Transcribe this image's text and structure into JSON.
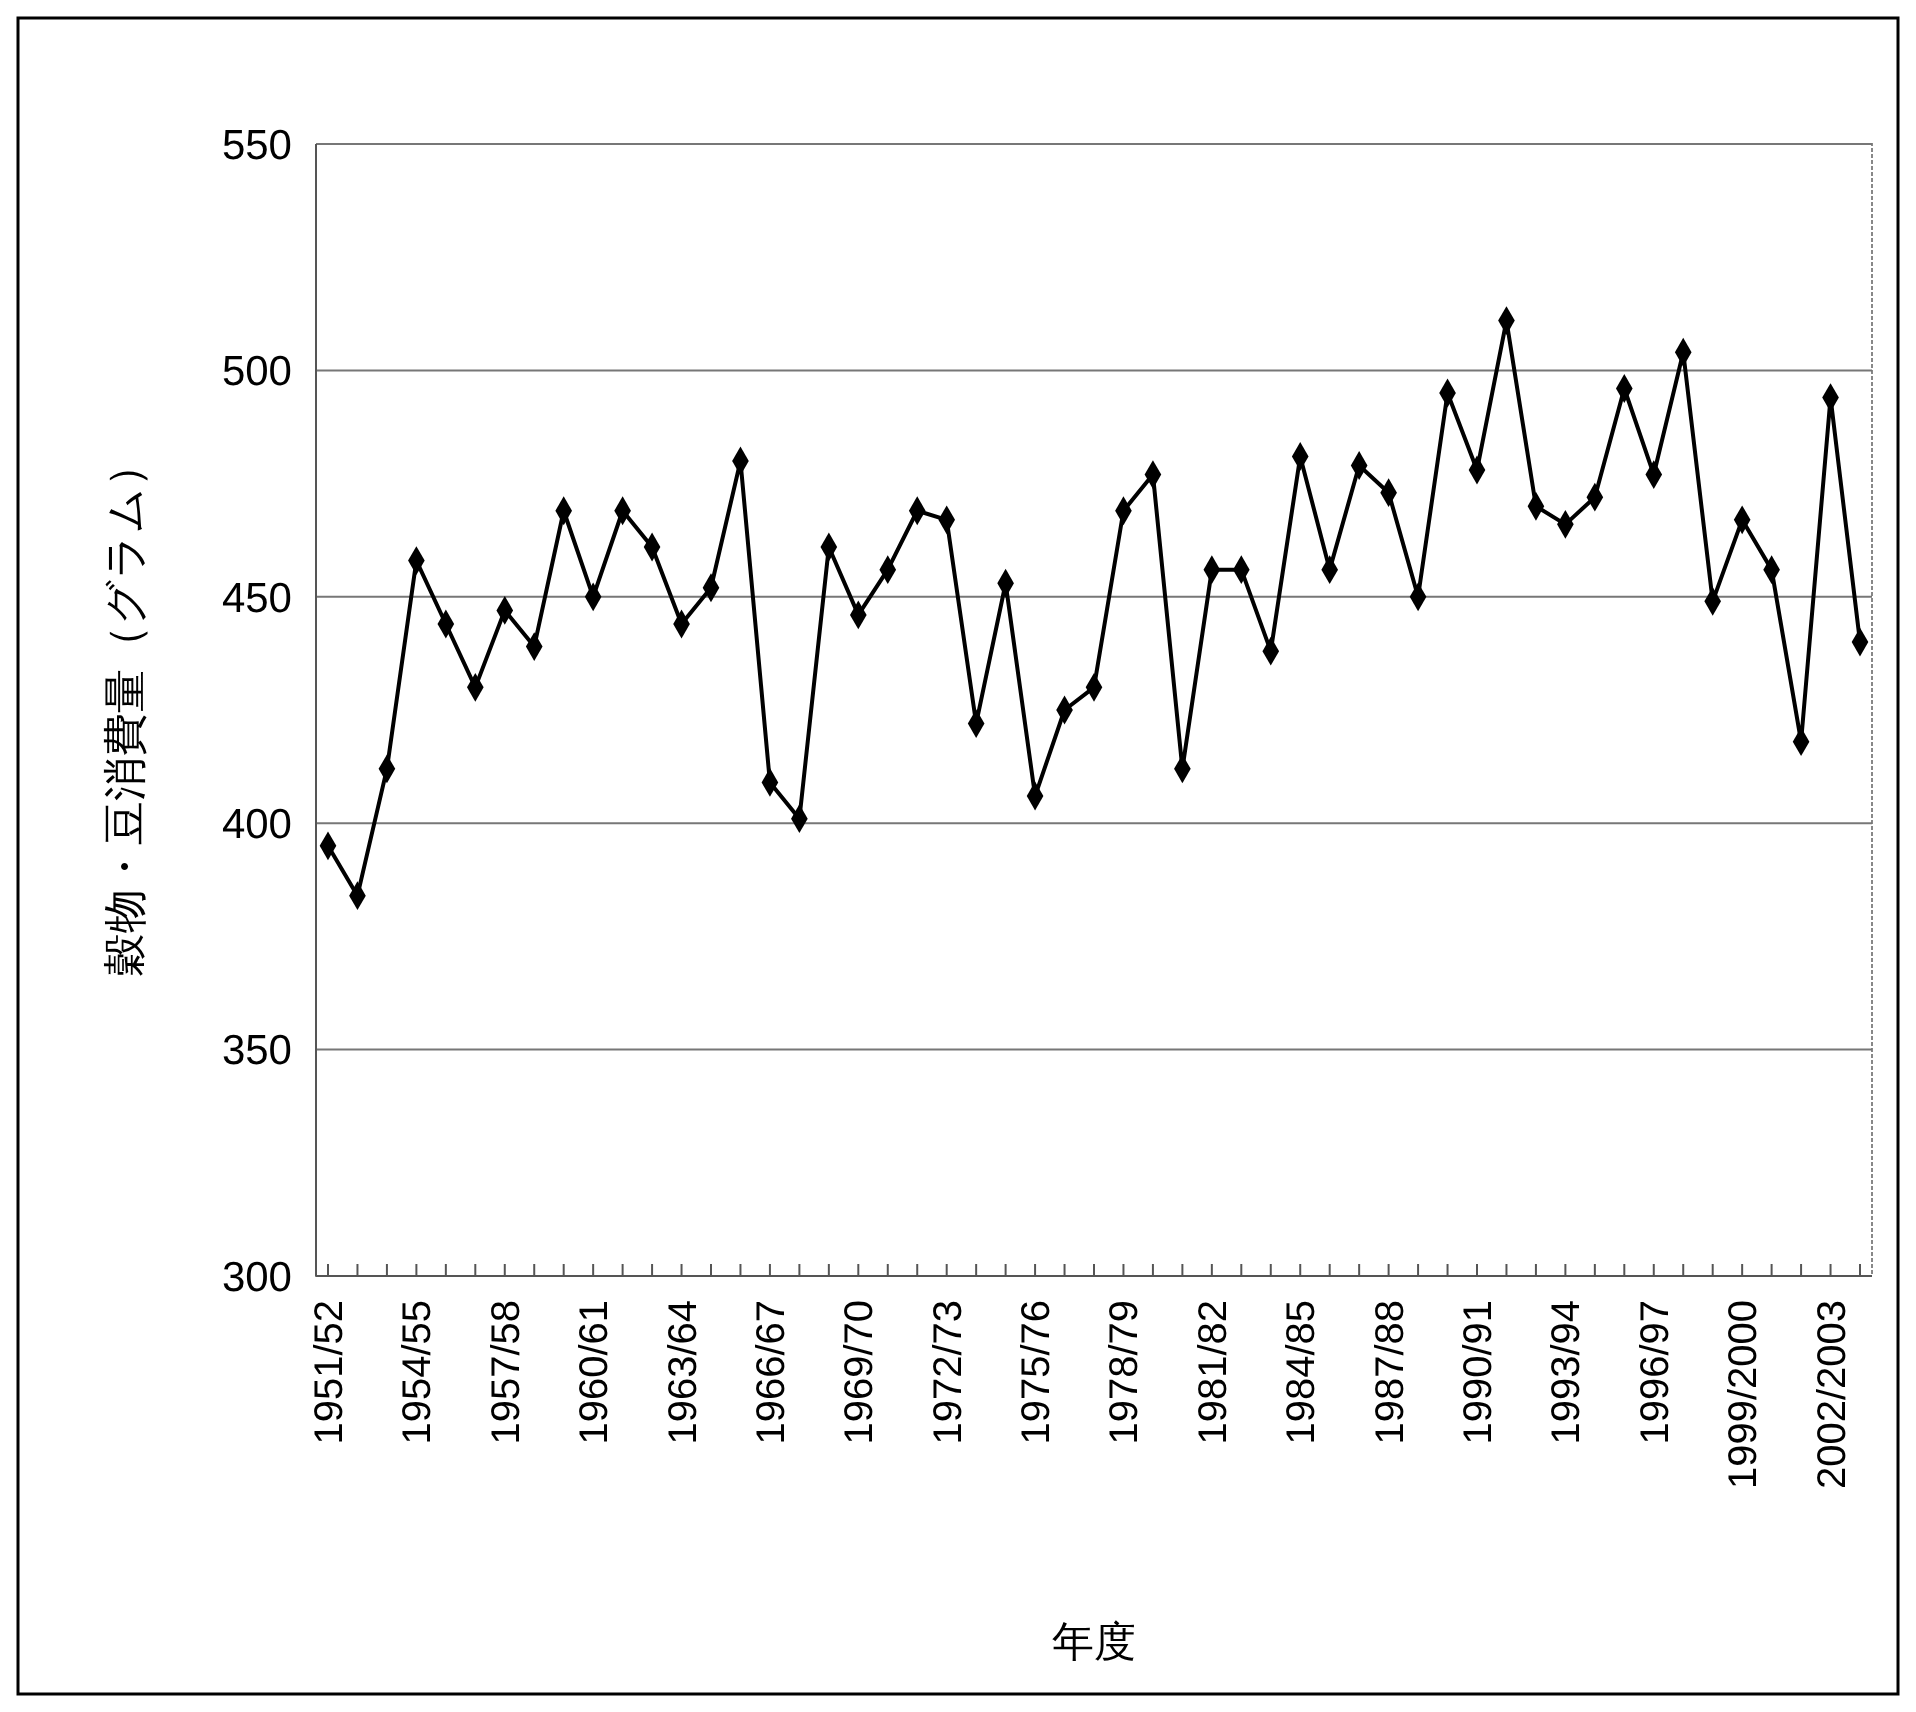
{
  "chart_data": {
    "type": "line",
    "xlabel": "年度",
    "ylabel": "穀物・豆消費量（グラム）",
    "categories": [
      "1951/52",
      null,
      null,
      "1954/55",
      null,
      null,
      "1957/58",
      null,
      null,
      "1960/61",
      null,
      null,
      "1963/64",
      null,
      null,
      "1966/67",
      null,
      null,
      "1969/70",
      null,
      null,
      "1972/73",
      null,
      null,
      "1975/76",
      null,
      null,
      "1978/79",
      null,
      null,
      "1981/82",
      null,
      null,
      "1984/85",
      null,
      null,
      "1987/88",
      null,
      null,
      "1990/91",
      null,
      null,
      "1993/94",
      null,
      null,
      "1996/97",
      null,
      null,
      "1999/2000",
      null,
      null,
      "2002/2003",
      null
    ],
    "series": [
      {
        "color": "#000000",
        "values": [
          395,
          384,
          412,
          458,
          444,
          430,
          447,
          439,
          469,
          450,
          469,
          461,
          444,
          452,
          480,
          409,
          401,
          461,
          446,
          456,
          469,
          467,
          422,
          453,
          406,
          425,
          430,
          469,
          477,
          412,
          456,
          456,
          438,
          481,
          456,
          479,
          473,
          450,
          495,
          478,
          511,
          470,
          466,
          472,
          496,
          477,
          504,
          449,
          467,
          456,
          418,
          494,
          440
        ]
      }
    ],
    "ylim": [
      300,
      550
    ],
    "yticks": [
      300,
      350,
      400,
      450,
      500,
      550
    ],
    "grid": "y",
    "marker": "diamond",
    "line_style": "solid"
  }
}
